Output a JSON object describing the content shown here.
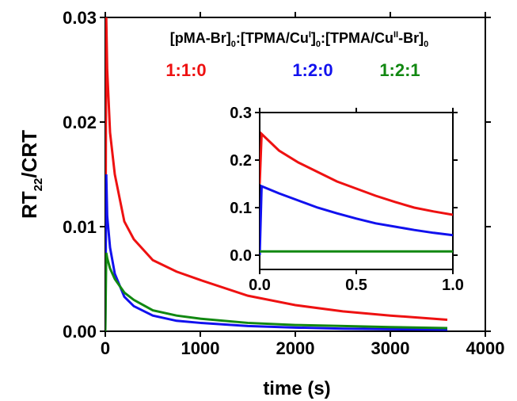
{
  "chart_data": [
    {
      "type": "line",
      "x_label": "time (s)",
      "y_label": [
        "RT",
        "22",
        "/CRT"
      ],
      "legend_title": [
        "[pMA-Br]",
        "0",
        ":[TPMA/Cu",
        "I",
        "]",
        "0",
        ":[TPMA/Cu",
        "II",
        "-Br]",
        "0"
      ],
      "x": [
        0,
        10,
        20,
        50,
        100,
        200,
        300,
        500,
        750,
        1000,
        1500,
        2000,
        2500,
        3000,
        3600
      ],
      "series": [
        {
          "name": "1:1:0",
          "color": "#ee1111",
          "values": [
            0,
            0.03,
            0.025,
            0.019,
            0.015,
            0.0105,
            0.0088,
            0.0068,
            0.0057,
            0.0049,
            0.0034,
            0.0025,
            0.0019,
            0.0015,
            0.0011
          ]
        },
        {
          "name": "1:2:0",
          "color": "#1111ee",
          "values": [
            0,
            0.015,
            0.011,
            0.008,
            0.0055,
            0.0033,
            0.0024,
            0.0015,
            0.001,
            0.0008,
            0.0005,
            0.00035,
            0.00025,
            0.0002,
            0.00015
          ]
        },
        {
          "name": "1:2:1",
          "color": "#118811",
          "values": [
            0,
            0.0075,
            0.007,
            0.006,
            0.005,
            0.0037,
            0.003,
            0.002,
            0.0015,
            0.0012,
            0.0008,
            0.0006,
            0.0005,
            0.0004,
            0.0003
          ]
        }
      ],
      "xlim": [
        0,
        4000
      ],
      "xticks": [
        0,
        1000,
        2000,
        3000,
        4000
      ],
      "ylim": [
        0,
        0.03
      ],
      "yticks": [
        {
          "value": 0,
          "label": "0.00"
        },
        0.01,
        0.02,
        0.03
      ]
    },
    {
      "type": "line",
      "x": [
        0,
        0.01,
        0.1,
        0.2,
        0.3,
        0.4,
        0.5,
        0.6,
        0.7,
        0.8,
        0.9,
        1.0
      ],
      "series": [
        {
          "color": "#ee1111",
          "values": [
            0.15,
            0.255,
            0.22,
            0.195,
            0.175,
            0.155,
            0.14,
            0.125,
            0.112,
            0.1,
            0.092,
            0.085
          ]
        },
        {
          "color": "#1111ee",
          "values": [
            0,
            0.145,
            0.13,
            0.115,
            0.1,
            0.088,
            0.077,
            0.067,
            0.06,
            0.053,
            0.047,
            0.042
          ]
        },
        {
          "color": "#118811",
          "values": [
            0.008,
            0.008,
            0.008,
            0.008,
            0.008,
            0.008,
            0.008,
            0.008,
            0.008,
            0.008,
            0.008,
            0.008
          ]
        }
      ],
      "xlim": [
        0,
        1.0
      ],
      "xticks": [
        {
          "value": 0,
          "label": "0.0"
        },
        0.5,
        {
          "value": 1.0,
          "label": "1.0"
        }
      ],
      "ylim": [
        -0.03,
        0.3
      ],
      "yticks": [
        {
          "value": 0,
          "label": "0.0"
        },
        0.1,
        0.2,
        0.3
      ]
    }
  ]
}
